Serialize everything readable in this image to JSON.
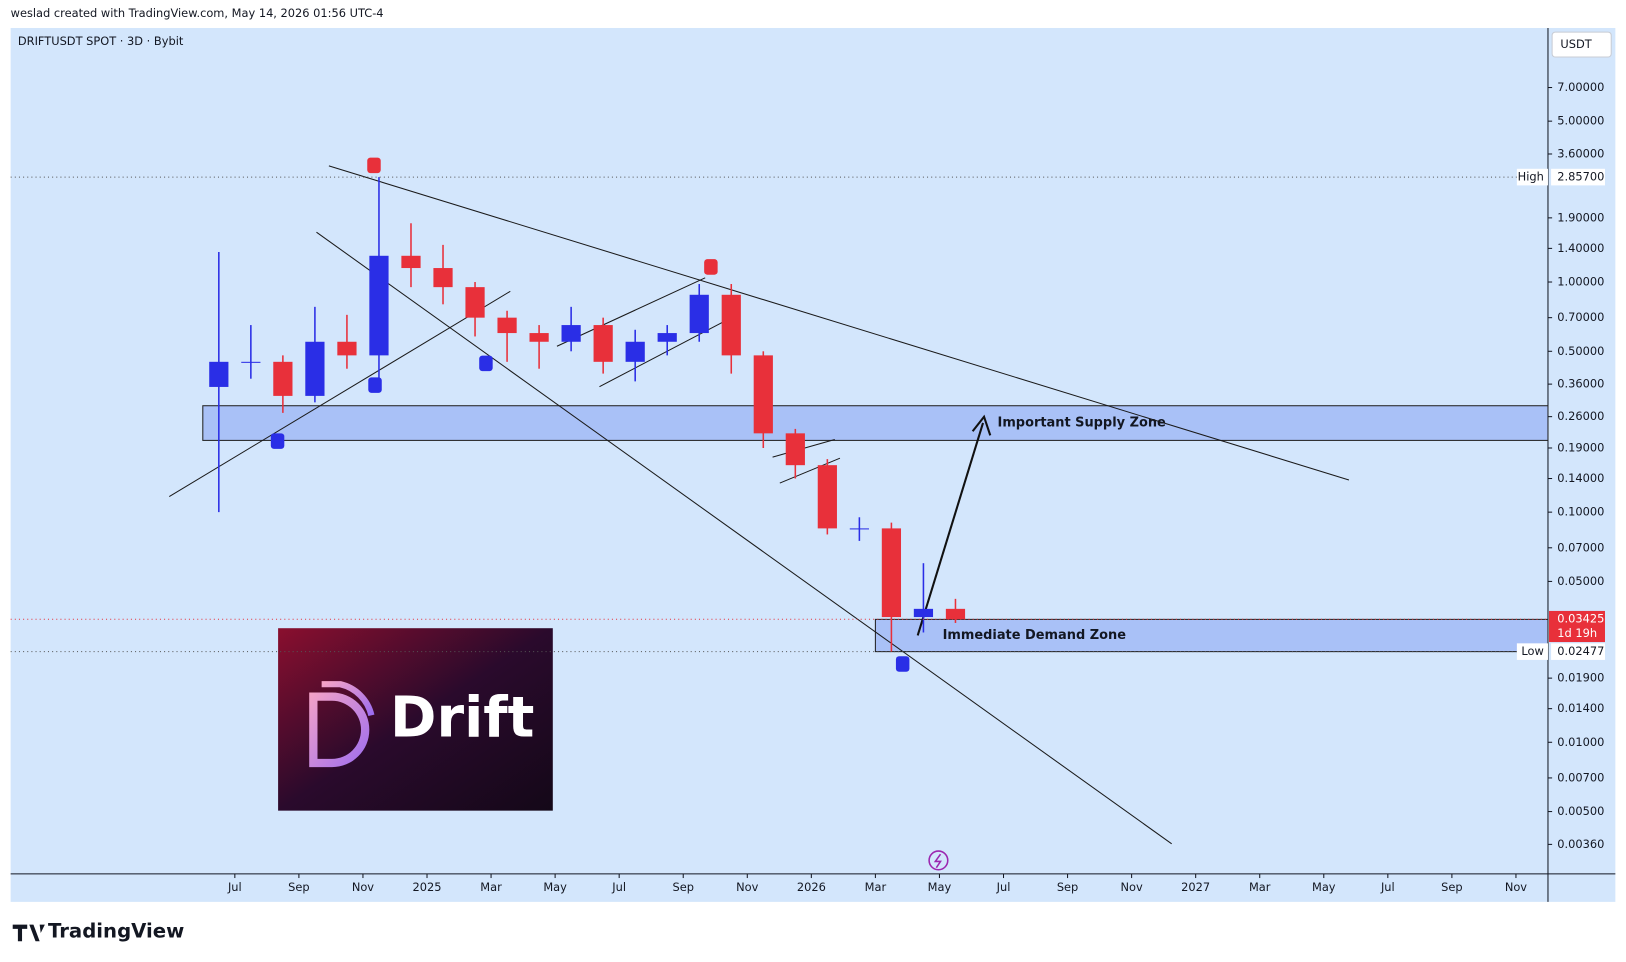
{
  "header": "weslad created with TradingView.com, May 14, 2026 01:56 UTC-4",
  "footer": "TradingView",
  "logo_text": "Drift",
  "chart_data": {
    "type": "candlestick",
    "title": "DRIFTUSDT SPOT · 3D · Bybit",
    "currency": "USDT",
    "log_scale": true,
    "grid": false,
    "up_color": "#2a2ee6",
    "down_color": "#e8303a",
    "x": [
      "2024-06",
      "2024-07",
      "2024-08",
      "2024-09",
      "2024-10",
      "2024-11",
      "2024-12",
      "2025-01",
      "2025-02",
      "2025-03",
      "2025-04",
      "2025-05",
      "2025-06",
      "2025-07",
      "2025-08",
      "2025-09",
      "2025-10",
      "2025-11",
      "2025-12",
      "2026-01",
      "2026-02",
      "2026-03",
      "2026-04",
      "2026-05"
    ],
    "open": [
      0.35,
      0.45,
      0.45,
      0.32,
      0.55,
      0.48,
      1.3,
      1.15,
      0.95,
      0.7,
      0.6,
      0.55,
      0.65,
      0.45,
      0.55,
      0.6,
      0.88,
      0.48,
      0.22,
      0.16,
      0.085,
      0.085,
      0.035,
      0.038
    ],
    "high": [
      1.35,
      0.65,
      0.48,
      0.78,
      0.72,
      2.857,
      1.8,
      1.45,
      1.0,
      0.75,
      0.65,
      0.78,
      0.7,
      0.62,
      0.65,
      0.98,
      0.98,
      0.5,
      0.23,
      0.17,
      0.095,
      0.09,
      0.06,
      0.042
    ],
    "low": [
      0.1,
      0.38,
      0.27,
      0.3,
      0.42,
      0.38,
      0.95,
      0.8,
      0.58,
      0.45,
      0.42,
      0.5,
      0.4,
      0.37,
      0.48,
      0.55,
      0.4,
      0.19,
      0.14,
      0.08,
      0.075,
      0.02477,
      0.03,
      0.033
    ],
    "close": [
      0.45,
      0.45,
      0.32,
      0.55,
      0.48,
      1.3,
      1.15,
      0.95,
      0.7,
      0.6,
      0.55,
      0.65,
      0.45,
      0.55,
      0.6,
      0.88,
      0.48,
      0.22,
      0.16,
      0.085,
      0.085,
      0.035,
      0.038,
      0.03425
    ],
    "xlim": [
      "2023-12",
      "2027-12"
    ],
    "xticks": [
      {
        "value": "2024-07",
        "label": "Jul"
      },
      {
        "value": "2024-09",
        "label": "Sep"
      },
      {
        "value": "2024-11",
        "label": "Nov"
      },
      {
        "value": "2025-01",
        "label": "2025"
      },
      {
        "value": "2025-03",
        "label": "Mar"
      },
      {
        "value": "2025-05",
        "label": "May"
      },
      {
        "value": "2025-07",
        "label": "Jul"
      },
      {
        "value": "2025-09",
        "label": "Sep"
      },
      {
        "value": "2025-11",
        "label": "Nov"
      },
      {
        "value": "2026-01",
        "label": "2026"
      },
      {
        "value": "2026-03",
        "label": "Mar"
      },
      {
        "value": "2026-05",
        "label": "May"
      },
      {
        "value": "2026-07",
        "label": "Jul"
      },
      {
        "value": "2026-09",
        "label": "Sep"
      },
      {
        "value": "2026-11",
        "label": "Nov"
      },
      {
        "value": "2027-01",
        "label": "2027"
      },
      {
        "value": "2027-03",
        "label": "Mar"
      },
      {
        "value": "2027-05",
        "label": "May"
      },
      {
        "value": "2027-07",
        "label": "Jul"
      },
      {
        "value": "2027-09",
        "label": "Sep"
      },
      {
        "value": "2027-11",
        "label": "Nov"
      }
    ],
    "ylim": [
      0.00268,
      12.7
    ],
    "yticks": [
      {
        "value": 7,
        "label": "7.00000"
      },
      {
        "value": 5,
        "label": "5.00000"
      },
      {
        "value": 3.6,
        "label": "3.60000"
      },
      {
        "value": 1.9,
        "label": "1.90000"
      },
      {
        "value": 1.4,
        "label": "1.40000"
      },
      {
        "value": 1,
        "label": "1.00000"
      },
      {
        "value": 0.7,
        "label": "0.70000"
      },
      {
        "value": 0.5,
        "label": "0.50000"
      },
      {
        "value": 0.36,
        "label": "0.36000"
      },
      {
        "value": 0.26,
        "label": "0.26000"
      },
      {
        "value": 0.19,
        "label": "0.19000"
      },
      {
        "value": 0.14,
        "label": "0.14000"
      },
      {
        "value": 0.1,
        "label": "0.10000"
      },
      {
        "value": 0.07,
        "label": "0.07000"
      },
      {
        "value": 0.05,
        "label": "0.05000"
      },
      {
        "value": 0.019,
        "label": "0.01900"
      },
      {
        "value": 0.014,
        "label": "0.01400"
      },
      {
        "value": 0.01,
        "label": "0.01000"
      },
      {
        "value": 0.007,
        "label": "0.00700"
      },
      {
        "value": 0.005,
        "label": "0.00500"
      },
      {
        "value": 0.0036,
        "label": "0.00360"
      }
    ],
    "price_lines": [
      {
        "name": "High",
        "value": 2.857,
        "label": "2.85700"
      },
      {
        "name": "Low",
        "value": 0.02477,
        "label": "0.02477"
      }
    ],
    "last_price": {
      "value": 0.03425,
      "label": "0.03425",
      "countdown": "1d 19h"
    },
    "zones": [
      {
        "label": "Important Supply Zone",
        "start": "2024-06",
        "range": [
          0.205,
          0.29
        ]
      },
      {
        "label": "Immediate Demand Zone",
        "start": "2026-03",
        "range": [
          0.02477,
          0.0342
        ]
      }
    ]
  }
}
